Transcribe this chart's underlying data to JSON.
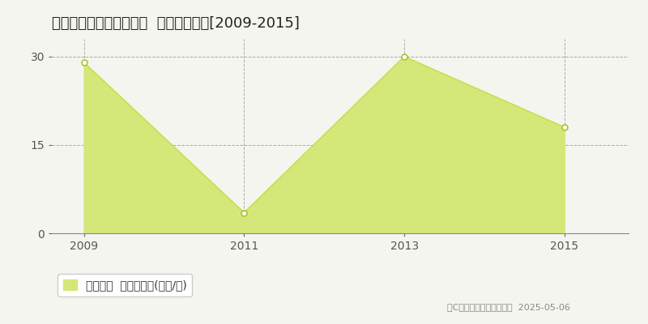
{
  "title": "甲賀市水口町虫生野中央  土地価格推移[2009-2015]",
  "years": [
    2009,
    2011,
    2013,
    2015
  ],
  "values": [
    29,
    3.5,
    30,
    18
  ],
  "line_color": "#c8e050",
  "fill_color": "#d4e87a",
  "marker_color": "#ffffff",
  "marker_edge_color": "#b0c030",
  "xlim": [
    2008.6,
    2015.8
  ],
  "ylim": [
    0,
    33
  ],
  "yticks": [
    0,
    15,
    30
  ],
  "xticks": [
    2009,
    2011,
    2013,
    2015
  ],
  "grid_color": "#aaaaaa",
  "background_color": "#f5f5f0",
  "plot_bg_color": "#f5f5f0",
  "legend_label": "土地価格  平均坪単価(万円/坪)",
  "copyright_text": "（C）土地価格ドットコム  2025-05-06",
  "title_fontsize": 13,
  "tick_fontsize": 10,
  "legend_fontsize": 10,
  "copyright_fontsize": 8
}
